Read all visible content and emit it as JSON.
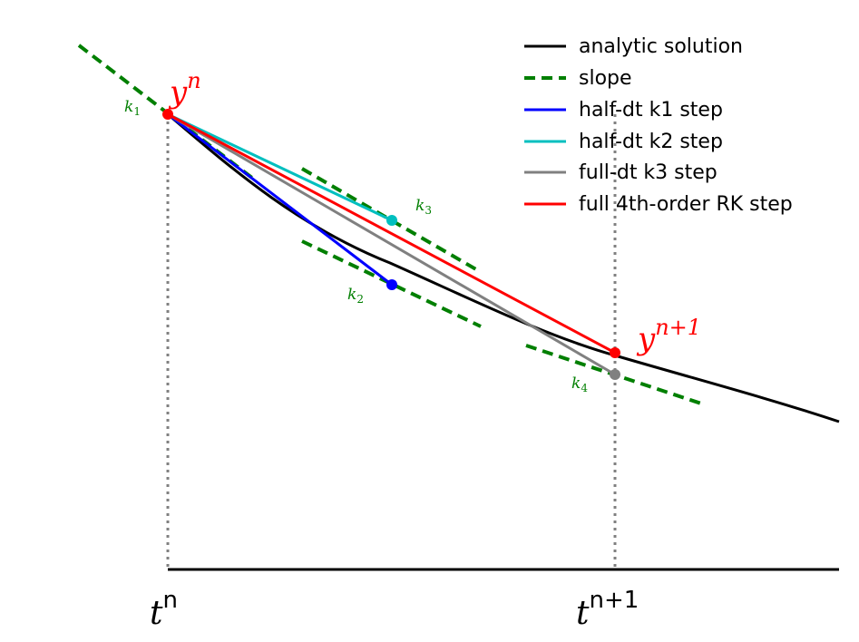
{
  "colors": {
    "analytic": "#000000",
    "slope": "#007f00",
    "k1_step": "#0000ff",
    "k2_step": "#00bfbf",
    "k3_step": "#808080",
    "rk4_step": "#ff0000",
    "guide": "#808080"
  },
  "legend": {
    "analytic": "analytic solution",
    "slope": "slope",
    "k1_step": "half-dt k1 step",
    "k2_step": "half-dt k2 step",
    "k3_step": "full-dt k3 step",
    "rk4_step": "full 4th-order RK step"
  },
  "labels": {
    "tn_base": "t",
    "tn_sup": "n",
    "tn1_base": "t",
    "tn1_sup": "n+1",
    "yn_base": "y",
    "yn_sup": "n",
    "yn1_base": "y",
    "yn1_sup": "n+1",
    "k1_base": "k",
    "k1_sub": "1",
    "k2_base": "k",
    "k2_sub": "2",
    "k3_base": "k",
    "k3_sub": "3",
    "k4_base": "k",
    "k4_sub": "4"
  }
}
